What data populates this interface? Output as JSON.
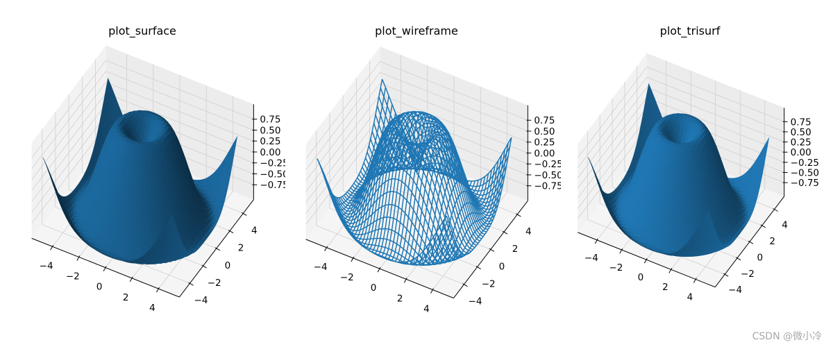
{
  "figure": {
    "titles": [
      "plot_surface",
      "plot_wireframe",
      "plot_trisurf"
    ],
    "watermark": "CSDN @微小冷"
  },
  "chart_data": [
    {
      "type": "surface",
      "title": "plot_surface",
      "function": "z = sin(sqrt(x^2 + y^2))",
      "x": {
        "start": -5,
        "stop": 5,
        "step": 0.25
      },
      "y": {
        "start": -5,
        "stop": 5,
        "step": 0.25
      },
      "xlim": [
        -5.5,
        5.5
      ],
      "ylim": [
        -5.5,
        5.5
      ],
      "zlim": [
        -1.09,
        1.09
      ],
      "x_ticks": [
        "−4",
        "−2",
        "0",
        "2",
        "4"
      ],
      "y_ticks": [
        "−4",
        "−2",
        "0",
        "2",
        "4"
      ],
      "z_ticks": [
        "−0.75",
        "−0.50",
        "−0.25",
        "0.00",
        "0.25",
        "0.50",
        "0.75"
      ],
      "color": "#1f77b4",
      "grid": true
    },
    {
      "type": "wireframe",
      "title": "plot_wireframe",
      "function": "z = sin(sqrt(x^2 + y^2))",
      "x": {
        "start": -5,
        "stop": 5,
        "step": 0.25
      },
      "y": {
        "start": -5,
        "stop": 5,
        "step": 0.25
      },
      "xlim": [
        -5.5,
        5.5
      ],
      "ylim": [
        -5.5,
        5.5
      ],
      "zlim": [
        -1.09,
        1.09
      ],
      "x_ticks": [
        "−4",
        "−2",
        "0",
        "2",
        "4"
      ],
      "y_ticks": [
        "−4",
        "−2",
        "0",
        "2",
        "4"
      ],
      "z_ticks": [
        "−0.75",
        "−0.50",
        "−0.25",
        "0.00",
        "0.25",
        "0.50",
        "0.75"
      ],
      "color": "#1f77b4",
      "grid": true
    },
    {
      "type": "trisurf",
      "title": "plot_trisurf",
      "function": "z = sin(sqrt(x^2 + y^2))",
      "x": {
        "start": -5,
        "stop": 5,
        "step": 0.25
      },
      "y": {
        "start": -5,
        "stop": 5,
        "step": 0.25
      },
      "xlim": [
        -5.5,
        5.5
      ],
      "ylim": [
        -5.5,
        5.5
      ],
      "zlim": [
        -1.09,
        1.09
      ],
      "x_ticks": [
        "−4",
        "−2",
        "0",
        "2",
        "4"
      ],
      "y_ticks": [
        "−4",
        "−2",
        "0",
        "2",
        "4"
      ],
      "z_ticks": [
        "−0.75",
        "−0.50",
        "−0.25",
        "0.00",
        "0.25",
        "0.50",
        "0.75"
      ],
      "color": "#1f77b4",
      "grid": true
    }
  ]
}
